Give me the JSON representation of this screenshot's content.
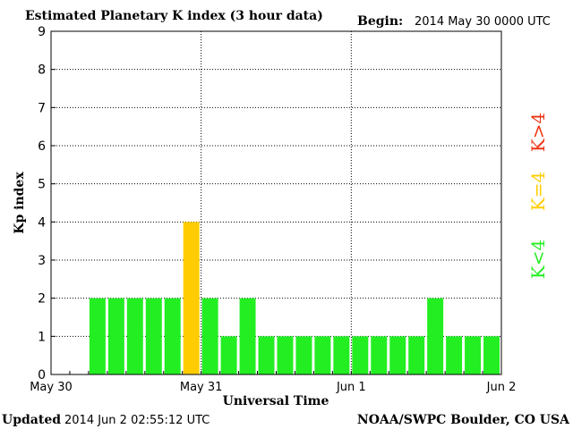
{
  "chart_data": {
    "type": "bar",
    "title": "Estimated Planetary K index (3 hour data)",
    "begin_label": "Begin:",
    "begin_value": "2014 May 30 0000 UTC",
    "xlabel": "Universal Time",
    "ylabel": "Kp index",
    "ylim": [
      0,
      9
    ],
    "yticks": [
      "0",
      "1",
      "2",
      "3",
      "4",
      "5",
      "6",
      "7",
      "8",
      "9"
    ],
    "xlim_hours": [
      0,
      72
    ],
    "x_ticks": [
      {
        "label": "May 30",
        "hour": 0
      },
      {
        "label": "May 31",
        "hour": 24
      },
      {
        "label": "Jun 1",
        "hour": 48
      },
      {
        "label": "Jun 2",
        "hour": 72
      }
    ],
    "interval_hours": 3,
    "values": [
      2,
      2,
      2,
      2,
      2,
      4,
      2,
      1,
      2,
      1,
      1,
      1,
      1,
      1,
      1,
      1,
      1,
      1,
      2,
      1,
      1,
      1
    ],
    "grid": true,
    "legend": [
      {
        "label": "K<4",
        "color": "#22ee22"
      },
      {
        "label": "K=4",
        "color": "#ffcc00"
      },
      {
        "label": "K>4",
        "color": "#ee3311"
      }
    ],
    "colors": {
      "low": "#22ee22",
      "mid": "#ffcc00",
      "high": "#ee3311"
    }
  },
  "footer": {
    "updated_label": "Updated",
    "updated_value": "2014 Jun  2 02:55:12 UTC",
    "source": "NOAA/SWPC Boulder, CO USA"
  }
}
